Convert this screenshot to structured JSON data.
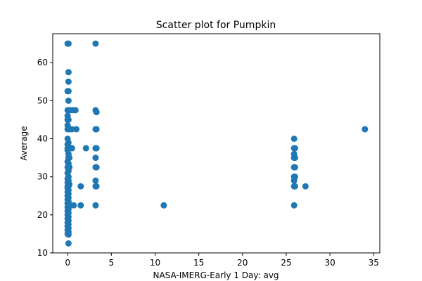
{
  "chart_data": {
    "type": "scatter",
    "title": "Scatter plot for Pumpkin",
    "xlabel": "NASA-IMERG-Early 1 Day: avg",
    "ylabel": "Average",
    "xlim": [
      -1.7,
      35.7
    ],
    "ylim": [
      10.0,
      67.6
    ],
    "xticks": [
      0,
      5,
      10,
      15,
      20,
      25,
      30,
      35
    ],
    "yticks": [
      10,
      20,
      30,
      40,
      50,
      60
    ],
    "grid": false,
    "marker_color": "#1f77b4",
    "series": [
      {
        "points": [
          [
            0,
            65
          ],
          [
            0.1,
            65
          ],
          [
            0.1,
            57.5
          ],
          [
            0.1,
            55
          ],
          [
            0.1,
            52.5
          ],
          [
            0,
            52.5
          ],
          [
            0.1,
            50
          ],
          [
            0,
            47.5
          ],
          [
            0.1,
            47.5
          ],
          [
            0.3,
            47.5
          ],
          [
            0.6,
            47.5
          ],
          [
            0.9,
            47.5
          ],
          [
            0,
            46
          ],
          [
            0,
            45
          ],
          [
            0.1,
            45
          ],
          [
            0,
            43.5
          ],
          [
            0,
            42.5
          ],
          [
            0.2,
            42.5
          ],
          [
            0.5,
            42.5
          ],
          [
            1,
            42.5
          ],
          [
            0,
            40
          ],
          [
            0.1,
            39
          ],
          [
            0,
            38.5
          ],
          [
            0.1,
            38
          ],
          [
            0,
            37.5
          ],
          [
            0.2,
            37.5
          ],
          [
            0.5,
            37.5
          ],
          [
            0,
            37
          ],
          [
            0.1,
            36
          ],
          [
            0.1,
            35
          ],
          [
            0.2,
            35
          ],
          [
            0,
            34
          ],
          [
            0.1,
            33.5
          ],
          [
            0,
            32.5
          ],
          [
            0.2,
            32.5
          ],
          [
            0.1,
            31.5
          ],
          [
            0,
            31
          ],
          [
            0.1,
            30
          ],
          [
            0,
            29.5
          ],
          [
            0.1,
            29
          ],
          [
            0,
            28.5
          ],
          [
            0.2,
            28
          ],
          [
            0,
            27.5
          ],
          [
            0.1,
            27.5
          ],
          [
            0,
            27
          ],
          [
            0.1,
            26.5
          ],
          [
            0,
            26
          ],
          [
            0.1,
            25.5
          ],
          [
            0,
            25
          ],
          [
            0.1,
            24.5
          ],
          [
            0,
            24
          ],
          [
            0.1,
            23.5
          ],
          [
            0,
            23
          ],
          [
            0.2,
            22.5
          ],
          [
            0.3,
            22.5
          ],
          [
            0.7,
            22.5
          ],
          [
            0,
            22
          ],
          [
            0.1,
            21.5
          ],
          [
            0,
            21
          ],
          [
            0.1,
            20.5
          ],
          [
            0,
            20
          ],
          [
            0.1,
            19.5
          ],
          [
            0,
            19
          ],
          [
            0.1,
            18.5
          ],
          [
            0,
            18
          ],
          [
            0.1,
            17.5
          ],
          [
            0,
            17
          ],
          [
            0.1,
            16.5
          ],
          [
            0,
            16
          ],
          [
            0.1,
            15.5
          ],
          [
            0,
            15
          ],
          [
            0.1,
            14.8
          ],
          [
            0.1,
            12.5
          ],
          [
            1.5,
            27.5
          ],
          [
            1.5,
            22.5
          ],
          [
            2.1,
            37.5
          ],
          [
            3.2,
            65
          ],
          [
            3.2,
            47.5
          ],
          [
            3.3,
            47
          ],
          [
            3.2,
            42.5
          ],
          [
            3.3,
            42.5
          ],
          [
            3.2,
            37.5
          ],
          [
            3.3,
            37.5
          ],
          [
            3.2,
            35
          ],
          [
            3.2,
            32.5
          ],
          [
            3.3,
            32.5
          ],
          [
            3.2,
            29
          ],
          [
            3.2,
            27.5
          ],
          [
            3.3,
            27.5
          ],
          [
            3.2,
            22.5
          ],
          [
            11,
            22.5
          ],
          [
            25.9,
            40
          ],
          [
            25.9,
            37.5
          ],
          [
            26,
            37.5
          ],
          [
            25.9,
            36
          ],
          [
            25.9,
            35
          ],
          [
            26,
            35
          ],
          [
            25.9,
            32.5
          ],
          [
            26,
            32.5
          ],
          [
            25.9,
            30
          ],
          [
            26,
            30
          ],
          [
            25.9,
            29
          ],
          [
            25.9,
            27.5
          ],
          [
            26,
            27.5
          ],
          [
            25.9,
            22.5
          ],
          [
            27.2,
            27.5
          ],
          [
            34,
            42.5
          ]
        ]
      }
    ]
  }
}
